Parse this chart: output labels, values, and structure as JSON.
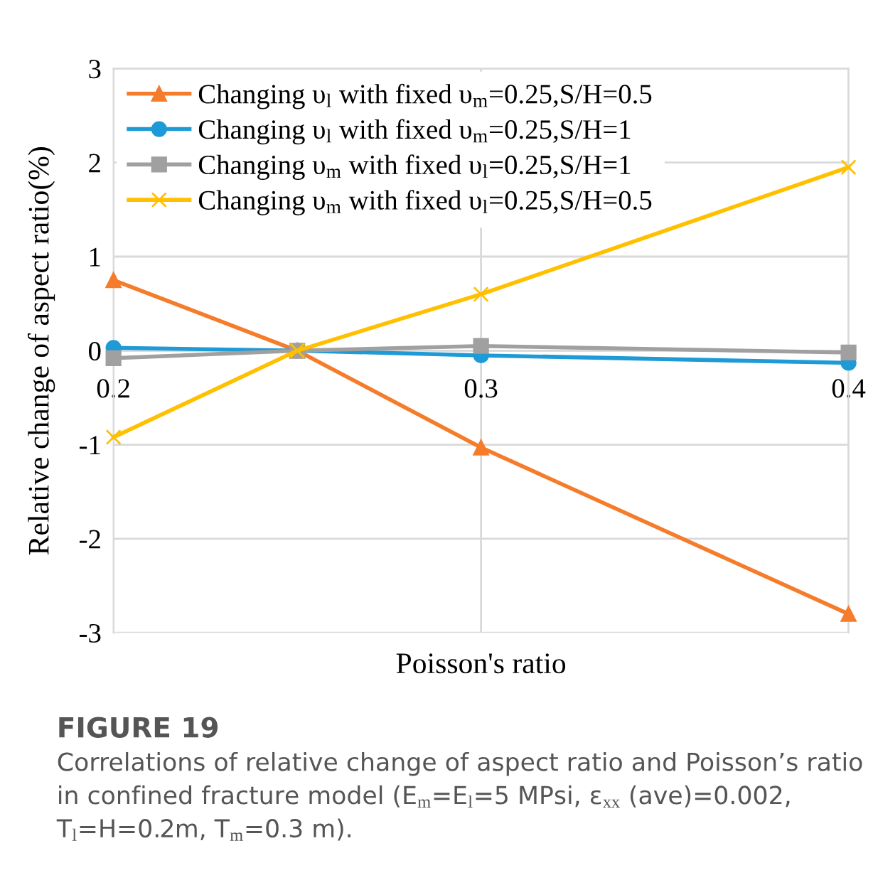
{
  "chart_data": {
    "type": "line",
    "xlabel": "Poisson's ratio",
    "ylabel": "Relative change of aspect ratio(%)",
    "x": [
      0.2,
      0.25,
      0.3,
      0.4
    ],
    "xlim": [
      0.2,
      0.4
    ],
    "xticks": [
      0.2,
      0.3,
      0.4
    ],
    "ylim": [
      -3,
      3
    ],
    "yticks": [
      -3,
      -2,
      -1,
      0,
      1,
      2,
      3
    ],
    "grid": true,
    "legend": "top left",
    "series": [
      {
        "name": "Changing υ$_{l}$ with fixed υ$_{m}$=0.25,S/H=0.5",
        "color": "#f57c2a",
        "marker": "triangle",
        "values": [
          0.75,
          0,
          -1.03,
          -2.8
        ]
      },
      {
        "name": "Changing υ$_{l}$ with fixed υ$_{m}$=0.25,S/H=1",
        "color": "#1e9ad6",
        "marker": "circle",
        "values": [
          0.03,
          0,
          -0.05,
          -0.13
        ]
      },
      {
        "name": "Changing υ$_{m}$ with fixed υ$_{l}$=0.25,S/H=1",
        "color": "#a0a0a0",
        "marker": "square",
        "values": [
          -0.08,
          0,
          0.05,
          -0.02
        ]
      },
      {
        "name": "Changing υ$_{m}$ with fixed υ$_{l}$=0.25,S/H=0.5",
        "color": "#ffc000",
        "marker": "cross",
        "values": [
          -0.92,
          0,
          0.6,
          1.95
        ]
      }
    ],
    "annotations": [
      "FIGURE 19",
      "Correlations of relative change of aspect ratio and Poisson’s ratio in confined fracture model (E$_{m}$=E$_{l}$=5 MPsi, ε$_{xx}$ (ave)=0.002, T$_{l}$=H=0.2m, T$_{m}$=0.3 m)."
    ]
  }
}
